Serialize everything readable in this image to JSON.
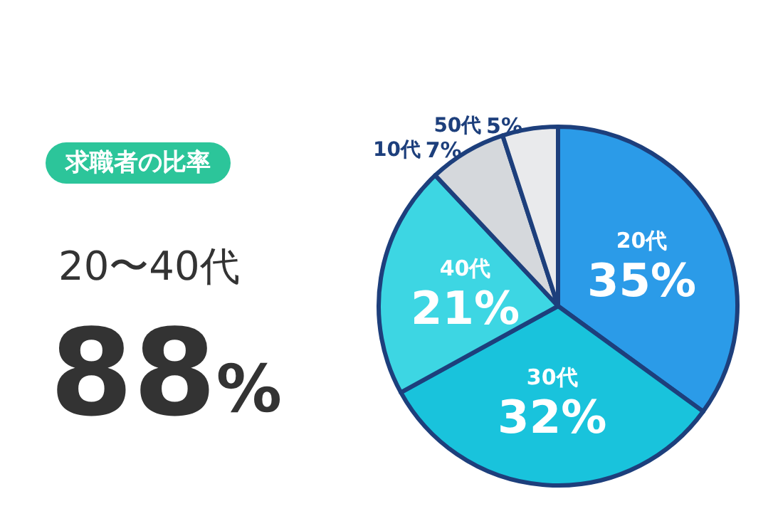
{
  "chart_data": {
    "type": "pie",
    "title": "求職者の比率",
    "subtitle": "20〜40代",
    "annotations": [
      "88%"
    ],
    "categories": [
      "20代",
      "30代",
      "40代",
      "10代",
      "50代"
    ],
    "values": [
      35,
      32,
      21,
      7,
      5
    ],
    "value_labels": [
      "35%",
      "32%",
      "21%",
      "7%",
      "5%"
    ],
    "colors": [
      "#2b9be8",
      "#19c3dc",
      "#3dd6e3",
      "#d5d8dc",
      "#e9eaec"
    ],
    "legend": false
  }
}
